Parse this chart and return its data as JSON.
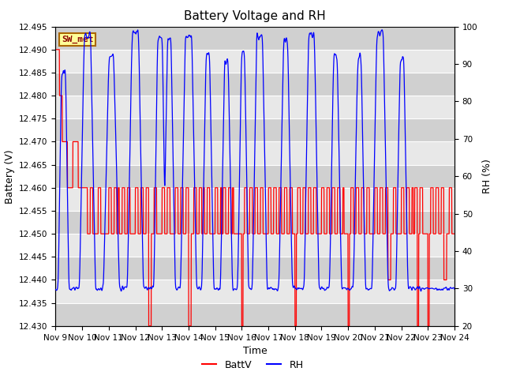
{
  "title": "Battery Voltage and RH",
  "xlabel": "Time",
  "ylabel_left": "Battery (V)",
  "ylabel_right": "RH (%)",
  "annotation": "SW_met",
  "legend": [
    "BattV",
    "RH"
  ],
  "ylim_left": [
    12.43,
    12.495
  ],
  "ylim_right": [
    20,
    100
  ],
  "yticks_left": [
    12.43,
    12.435,
    12.44,
    12.445,
    12.45,
    12.455,
    12.46,
    12.465,
    12.47,
    12.475,
    12.48,
    12.485,
    12.49,
    12.495
  ],
  "yticks_right": [
    20,
    30,
    40,
    50,
    60,
    70,
    80,
    90,
    100
  ],
  "xtick_labels": [
    "Nov 9",
    "Nov 10",
    "Nov 11",
    "Nov 12",
    "Nov 13",
    "Nov 14",
    "Nov 15",
    "Nov 16",
    "Nov 17",
    "Nov 18",
    "Nov 19",
    "Nov 20",
    "Nov 21",
    "Nov 22",
    "Nov 23",
    "Nov 24"
  ],
  "background_color": "#ffffff",
  "plot_bg_light": "#e8e8e8",
  "plot_bg_dark": "#d0d0d0",
  "grid_color": "#ffffff",
  "line_color_batt": "red",
  "line_color_rh": "blue",
  "title_fontsize": 11,
  "axis_label_fontsize": 9,
  "tick_fontsize": 7.5,
  "annotation_fontsize": 8,
  "legend_fontsize": 9
}
